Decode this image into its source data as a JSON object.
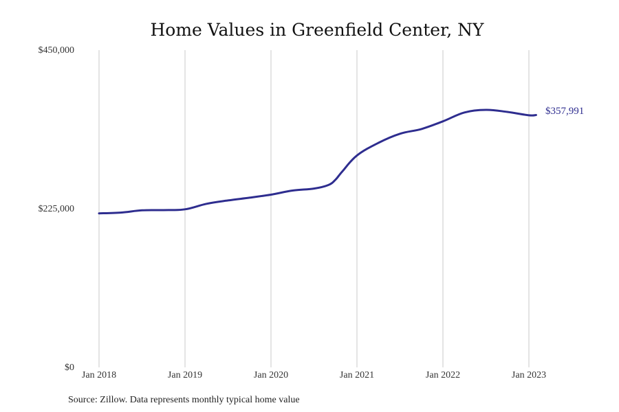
{
  "chart_data": {
    "type": "line",
    "title": "Home Values in Greenfield Center, NY",
    "x_tick_labels": [
      "Jan 2018",
      "Jan 2019",
      "Jan 2020",
      "Jan 2021",
      "Jan 2022",
      "Jan 2023"
    ],
    "y_tick_labels": [
      "$450,000",
      "$225,000",
      "$0"
    ],
    "ylim": [
      0,
      450000
    ],
    "grid": "vertical",
    "series": [
      {
        "color": "#2e2d8f",
        "x": [
          "2018-01",
          "2018-04",
          "2018-07",
          "2018-10",
          "2019-01",
          "2019-04",
          "2019-07",
          "2019-10",
          "2020-01",
          "2020-04",
          "2020-07",
          "2020-09",
          "2020-10",
          "2020-11",
          "2021-01",
          "2021-04",
          "2021-07",
          "2021-10",
          "2022-01",
          "2022-04",
          "2022-07",
          "2022-10",
          "2023-01",
          "2023-02"
        ],
        "values": [
          218500,
          219500,
          222800,
          223100,
          224200,
          232000,
          236800,
          240700,
          245000,
          250800,
          253600,
          258600,
          266200,
          278500,
          300600,
          318500,
          331400,
          338100,
          349000,
          361600,
          365300,
          362300,
          357600,
          357991
        ]
      }
    ],
    "end_label": "$357,991"
  },
  "source": "Source: Zillow. Data represents monthly typical home value"
}
